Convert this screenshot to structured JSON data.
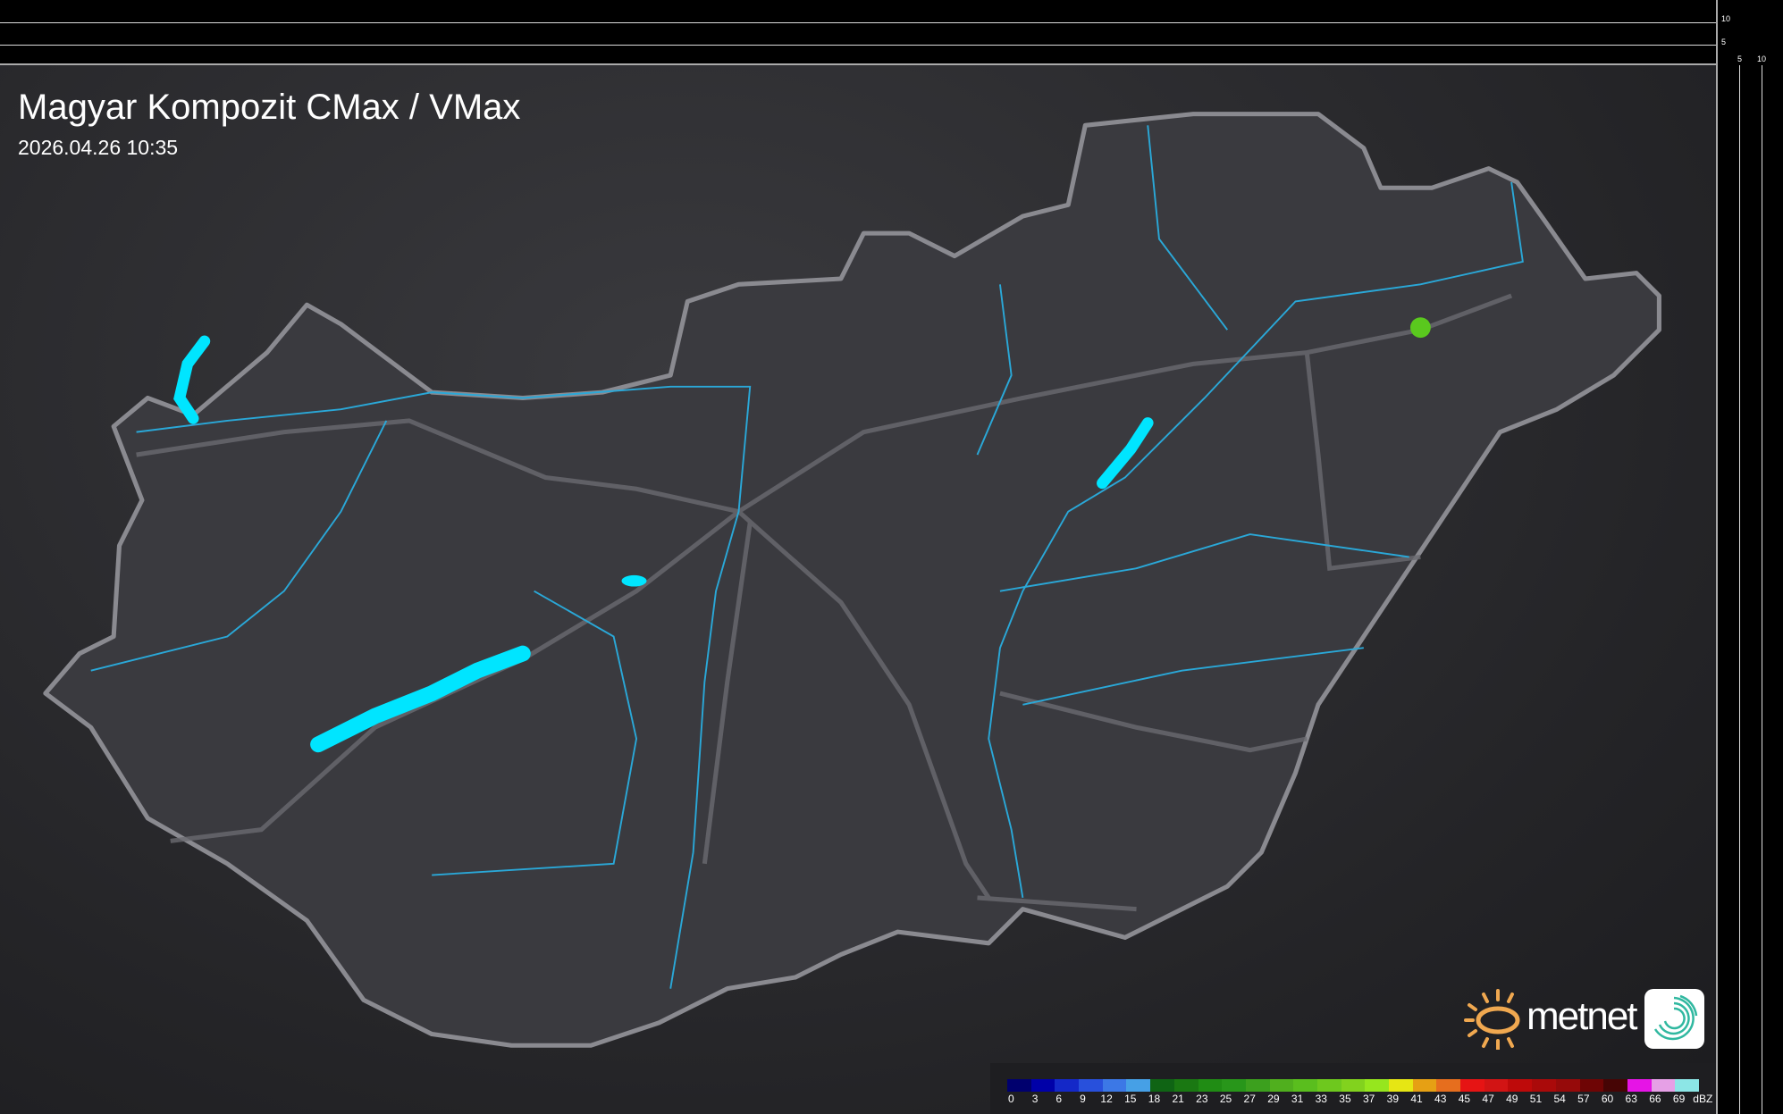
{
  "header": {
    "title": "Magyar Kompozit CMax / VMax",
    "datetime": "2026.04.26 10:35"
  },
  "scale": {
    "vertical_ticks": [
      "10",
      "5"
    ],
    "horizontal_ticks": [
      "5",
      "10"
    ]
  },
  "legend": {
    "unit": "dBZ",
    "labels": [
      "0",
      "3",
      "6",
      "9",
      "12",
      "15",
      "18",
      "21",
      "23",
      "25",
      "27",
      "29",
      "31",
      "33",
      "35",
      "37",
      "39",
      "41",
      "43",
      "45",
      "47",
      "49",
      "51",
      "54",
      "57",
      "60",
      "63",
      "66",
      "69"
    ],
    "colors": [
      "#00006e",
      "#0000a8",
      "#1428c8",
      "#2850dc",
      "#3c78e6",
      "#46a0e6",
      "#0f6414",
      "#1a7812",
      "#208c14",
      "#28961a",
      "#3ca01e",
      "#50af1e",
      "#5abe1e",
      "#6ec81e",
      "#82d21e",
      "#96e61e",
      "#e6e614",
      "#e6a014",
      "#e66e1e",
      "#e61414",
      "#d21414",
      "#be0a0a",
      "#aa0a0a",
      "#960a0a",
      "#6e0505",
      "#460505",
      "#e614e6",
      "#e6a0e6",
      "#8ce6e6"
    ]
  },
  "logo": {
    "brand": "metnet",
    "accent": "#f0a850",
    "icon_color": "#30b8a0"
  },
  "map": {
    "region": "Hungary",
    "echo_color": "#5ac81e",
    "water_color": "#00e5ff",
    "river_color": "#2aa8d8"
  }
}
